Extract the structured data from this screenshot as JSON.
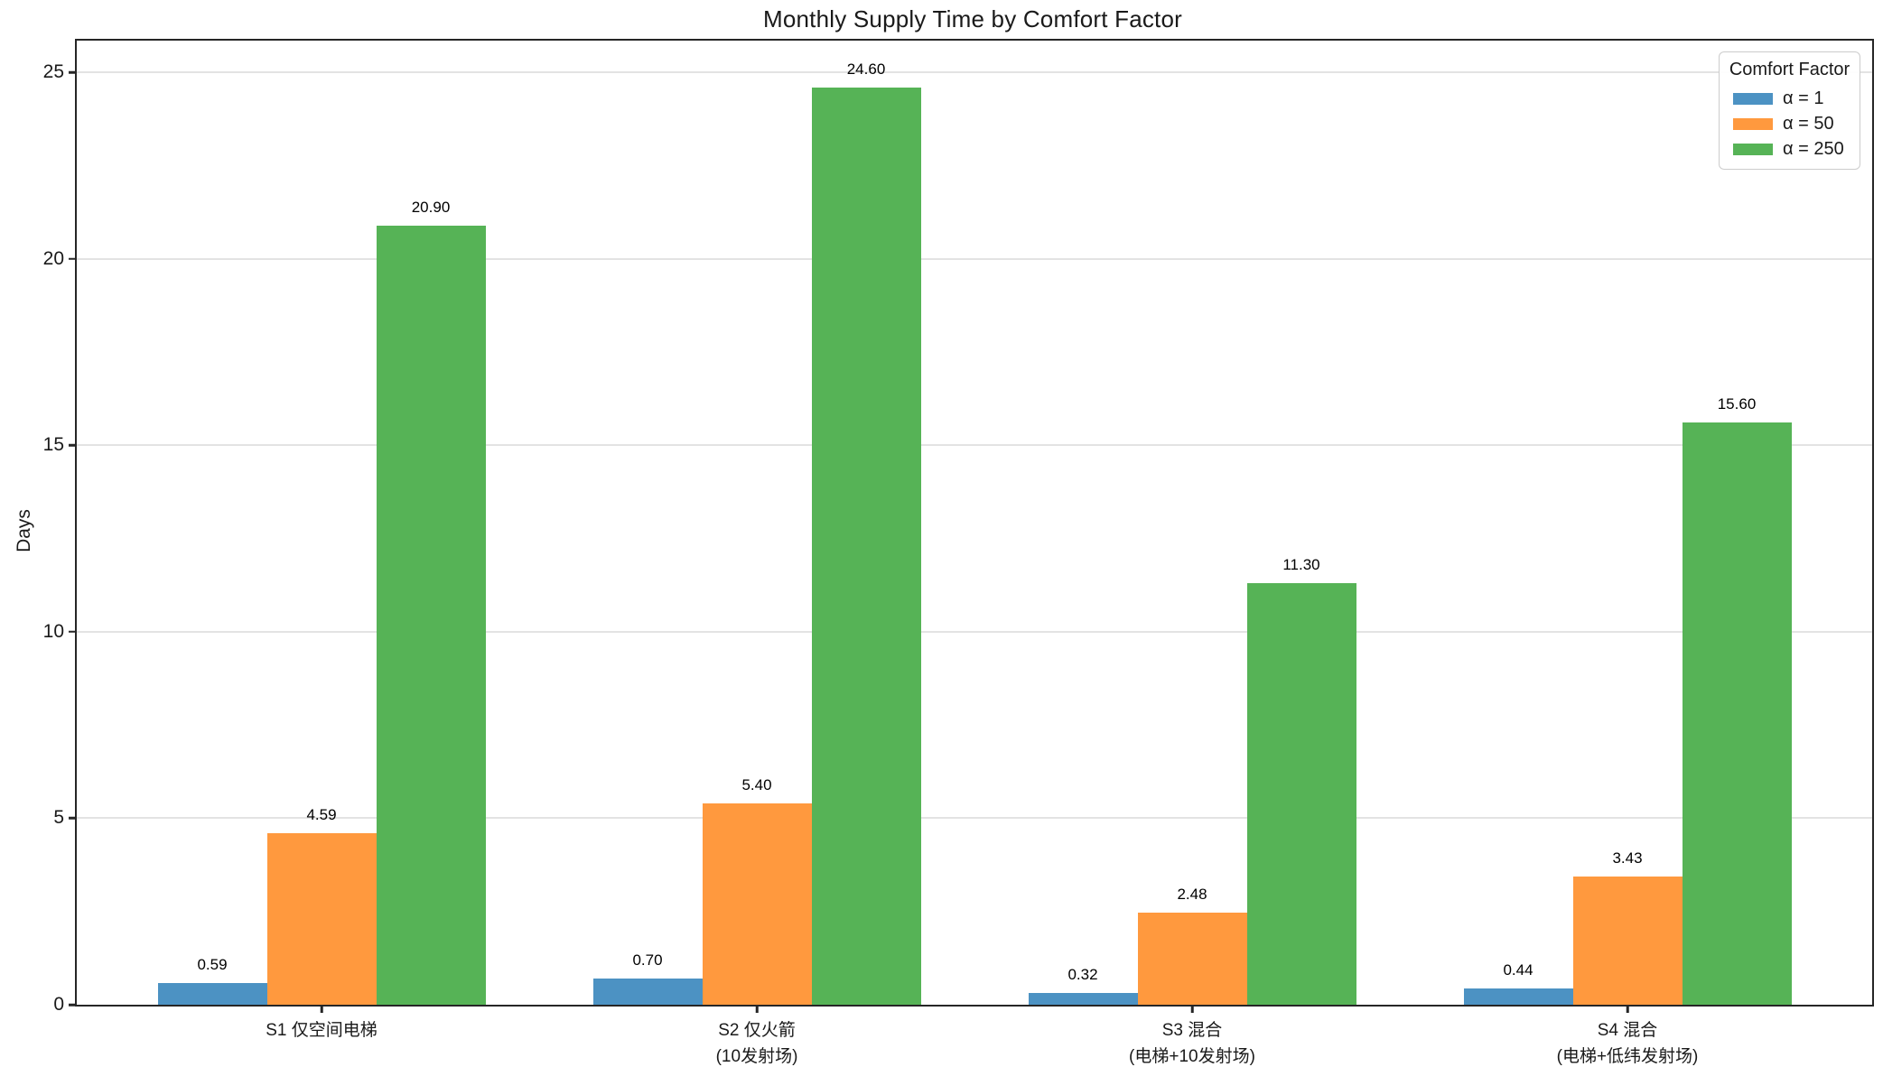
{
  "chart_data": {
    "type": "bar",
    "title": "Monthly Supply Time by Comfort Factor",
    "ylabel": "Days",
    "xlabel": "",
    "legend_title": "Comfort Factor",
    "legend_position": "upper right",
    "grid": true,
    "categories": [
      "S1 仅空间电梯",
      "S2 仅火箭\n(10发射场)",
      "S3 混合\n(电梯+10发射场)",
      "S4 混合\n(电梯+低纬发射场)"
    ],
    "series": [
      {
        "name": "α = 1",
        "color": "#4C92C3",
        "values": [
          0.59,
          0.7,
          0.32,
          0.44
        ]
      },
      {
        "name": "α = 50",
        "color": "#FF993E",
        "values": [
          4.59,
          5.4,
          2.48,
          3.43
        ]
      },
      {
        "name": "α = 250",
        "color": "#56B356",
        "values": [
          20.9,
          24.6,
          11.3,
          15.6
        ]
      }
    ],
    "bar_labels": [
      [
        "0.59",
        "0.70",
        "0.32",
        "0.44"
      ],
      [
        "4.59",
        "5.40",
        "2.48",
        "3.43"
      ],
      [
        "20.90",
        "24.60",
        "11.30",
        "15.60"
      ]
    ],
    "yticks": [
      0,
      5,
      10,
      15,
      20,
      25
    ],
    "ylim": [
      0,
      25.85
    ]
  },
  "colors": {
    "spine": "#262626",
    "grid": "#b0b0b0",
    "background": "#ffffff"
  }
}
